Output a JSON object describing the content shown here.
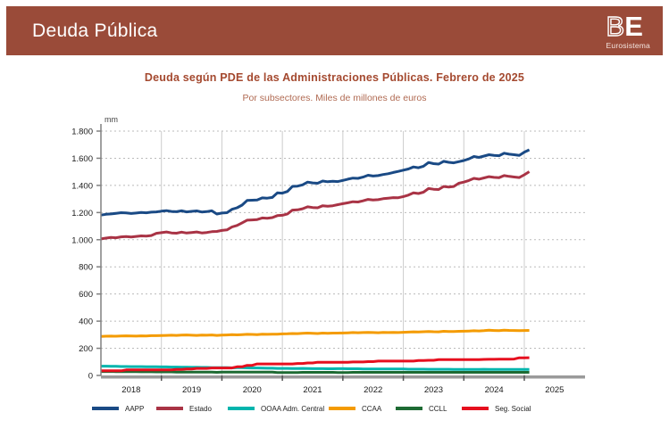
{
  "header": {
    "title": "Deuda Pública",
    "logo": {
      "letter_b": "B",
      "letter_e": "E",
      "subtext": "Eurosistema"
    },
    "band_color": "#9a4b39"
  },
  "chart_data": {
    "type": "line",
    "title": "Deuda según PDE de las Administraciones Públicas. Febrero de 2025",
    "subtitle": "Por subsectores. Miles de millones de euros",
    "unit_label": "mm",
    "legend_position": "bottom",
    "grid": {
      "horizontal": "dashed",
      "vertical": "solid-yearly"
    },
    "x_axis": {
      "start_year": 2018,
      "points_per_year": 12,
      "last_point": "Febrero 2025",
      "year_labels": [
        "2018",
        "2019",
        "2020",
        "2021",
        "2022",
        "2023",
        "2024",
        "2025"
      ]
    },
    "y_axis": {
      "min": 0,
      "max": 1800,
      "tick_step": 200,
      "tick_labels": [
        "0",
        "200",
        "400",
        "600",
        "800",
        "1.000",
        "1.200",
        "1.400",
        "1.600",
        "1.800"
      ]
    },
    "series": [
      {
        "name": "AAPP",
        "color": "#1a4a85",
        "values": [
          1181,
          1187,
          1190,
          1194,
          1199,
          1197,
          1193,
          1196,
          1200,
          1198,
          1203,
          1205,
          1210,
          1214,
          1208,
          1206,
          1213,
          1205,
          1209,
          1212,
          1204,
          1207,
          1213,
          1189,
          1196,
          1199,
          1224,
          1235,
          1255,
          1289,
          1291,
          1292,
          1308,
          1306,
          1311,
          1345,
          1343,
          1355,
          1393,
          1395,
          1404,
          1424,
          1418,
          1416,
          1432,
          1427,
          1430,
          1428,
          1437,
          1446,
          1454,
          1452,
          1461,
          1475,
          1469,
          1472,
          1480,
          1486,
          1495,
          1503,
          1512,
          1521,
          1536,
          1530,
          1541,
          1569,
          1560,
          1557,
          1577,
          1570,
          1566,
          1575,
          1583,
          1595,
          1613,
          1606,
          1616,
          1626,
          1621,
          1619,
          1637,
          1630,
          1626,
          1621,
          1645,
          1662
        ]
      },
      {
        "name": "Estado",
        "color": "#a93345",
        "values": [
          1006,
          1012,
          1016,
          1014,
          1021,
          1023,
          1020,
          1024,
          1028,
          1026,
          1031,
          1047,
          1052,
          1057,
          1050,
          1048,
          1056,
          1049,
          1053,
          1057,
          1050,
          1053,
          1059,
          1061,
          1068,
          1072,
          1094,
          1105,
          1124,
          1144,
          1146,
          1148,
          1160,
          1158,
          1163,
          1177,
          1180,
          1190,
          1218,
          1220,
          1228,
          1242,
          1237,
          1235,
          1250,
          1246,
          1250,
          1258,
          1265,
          1272,
          1280,
          1278,
          1286,
          1297,
          1292,
          1295,
          1302,
          1306,
          1310,
          1309,
          1318,
          1328,
          1345,
          1340,
          1350,
          1377,
          1372,
          1370,
          1392,
          1388,
          1392,
          1416,
          1424,
          1436,
          1452,
          1446,
          1455,
          1464,
          1459,
          1457,
          1472,
          1466,
          1462,
          1458,
          1478,
          1501
        ]
      },
      {
        "name": "OOAA Adm. Central",
        "color": "#00b5ad",
        "values": [
          68,
          68,
          67,
          67,
          66,
          66,
          65,
          65,
          65,
          64,
          64,
          64,
          63,
          63,
          62,
          62,
          61,
          61,
          60,
          60,
          59,
          59,
          58,
          58,
          57,
          57,
          56,
          58,
          57,
          56,
          55,
          55,
          54,
          53,
          53,
          52,
          52,
          52,
          51,
          51,
          52,
          51,
          50,
          50,
          50,
          49,
          49,
          50,
          50,
          49,
          49,
          49,
          48,
          48,
          48,
          48,
          47,
          47,
          47,
          47,
          47,
          46,
          46,
          46,
          46,
          45,
          45,
          45,
          45,
          45,
          44,
          44,
          44,
          44,
          44,
          44,
          45,
          44,
          44,
          44,
          44,
          44,
          44,
          44,
          44,
          44
        ]
      },
      {
        "name": "CCAA",
        "color": "#f49b00",
        "values": [
          288,
          289,
          290,
          289,
          291,
          292,
          291,
          290,
          292,
          291,
          293,
          293,
          294,
          295,
          296,
          295,
          297,
          298,
          296,
          295,
          297,
          296,
          298,
          295,
          297,
          298,
          300,
          299,
          301,
          303,
          302,
          301,
          304,
          303,
          304,
          304,
          306,
          307,
          309,
          308,
          310,
          312,
          310,
          309,
          312,
          311,
          312,
          312,
          313,
          314,
          316,
          315,
          316,
          317,
          316,
          315,
          317,
          316,
          317,
          316,
          318,
          319,
          321,
          320,
          322,
          324,
          322,
          321,
          325,
          323,
          324,
          325,
          326,
          327,
          329,
          328,
          330,
          333,
          331,
          330,
          334,
          332,
          331,
          330,
          331,
          332
        ]
      },
      {
        "name": "CCLL",
        "color": "#1e6b33",
        "values": [
          29,
          29,
          29,
          28,
          28,
          28,
          28,
          28,
          27,
          27,
          27,
          26,
          26,
          26,
          26,
          25,
          25,
          25,
          25,
          25,
          25,
          24,
          24,
          23,
          24,
          24,
          24,
          24,
          24,
          25,
          24,
          24,
          24,
          24,
          24,
          22,
          22,
          22,
          22,
          22,
          23,
          23,
          23,
          23,
          23,
          23,
          23,
          22,
          22,
          22,
          23,
          23,
          23,
          23,
          23,
          23,
          23,
          23,
          23,
          23,
          23,
          23,
          23,
          23,
          23,
          23,
          23,
          23,
          23,
          23,
          23,
          23,
          23,
          23,
          23,
          23,
          23,
          23,
          23,
          23,
          23,
          23,
          23,
          23,
          23,
          23
        ]
      },
      {
        "name": "Seg. Social",
        "color": "#e60f1e",
        "values": [
          34,
          34,
          34,
          34,
          34,
          41,
          41,
          41,
          41,
          41,
          41,
          41,
          41,
          41,
          41,
          44,
          44,
          48,
          48,
          52,
          52,
          52,
          55,
          55,
          55,
          55,
          55,
          64,
          64,
          74,
          74,
          85,
          85,
          85,
          85,
          85,
          85,
          85,
          85,
          88,
          88,
          92,
          92,
          97,
          97,
          97,
          97,
          97,
          97,
          97,
          99,
          99,
          99,
          102,
          102,
          106,
          106,
          106,
          106,
          106,
          106,
          106,
          106,
          110,
          110,
          112,
          112,
          116,
          116,
          116,
          116,
          116,
          116,
          116,
          116,
          117,
          118,
          119,
          119,
          120,
          120,
          120,
          121,
          130,
          130,
          131
        ]
      }
    ]
  }
}
